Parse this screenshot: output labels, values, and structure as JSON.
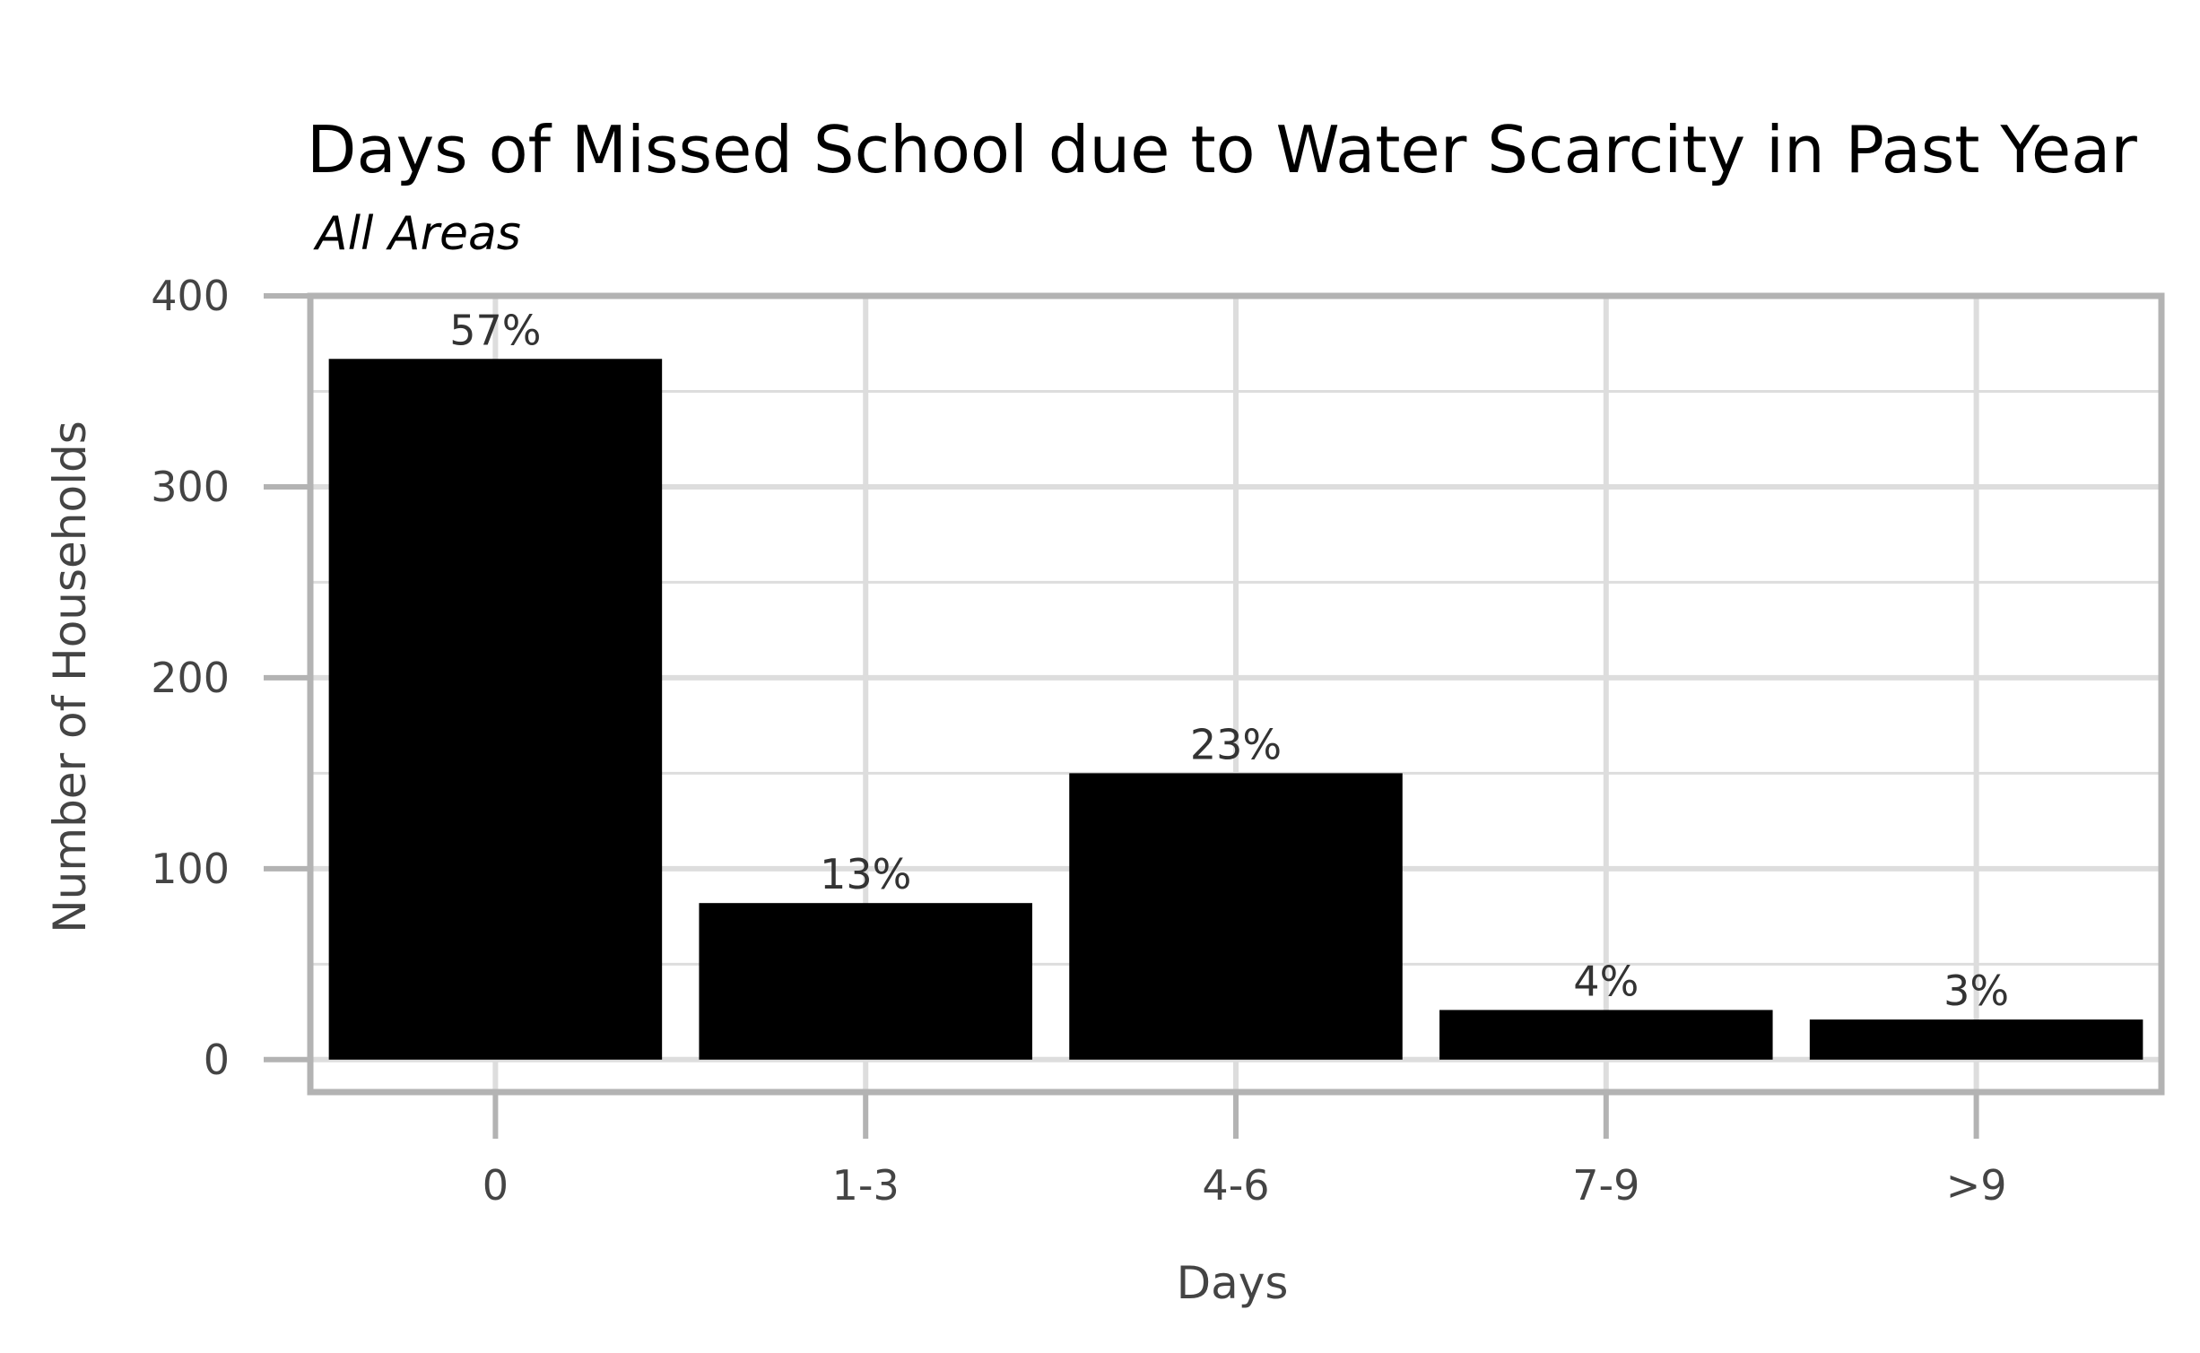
{
  "chart_data": {
    "type": "bar",
    "title": "Days of Missed School due to Water Scarcity in Past Year",
    "subtitle": "All Areas",
    "xlabel": "Days",
    "ylabel": "Number of Households",
    "categories": [
      "0",
      "1-3",
      "4-6",
      "7-9",
      ">9"
    ],
    "values": [
      367,
      82,
      150,
      26,
      21
    ],
    "data_labels": [
      "57%",
      "13%",
      "23%",
      "4%",
      "3%"
    ],
    "ylim": [
      -17,
      400
    ],
    "yticks": [
      0,
      100,
      200,
      300,
      400
    ],
    "ytick_labels": [
      "0",
      "100",
      "200",
      "300",
      "400"
    ],
    "grid": true,
    "legend": "none",
    "colors": {
      "bar": "#000000",
      "grid": "#dddddd",
      "panel_border": "#b3b3b3",
      "tick": "#b3b3b3",
      "text": "#444444"
    }
  }
}
